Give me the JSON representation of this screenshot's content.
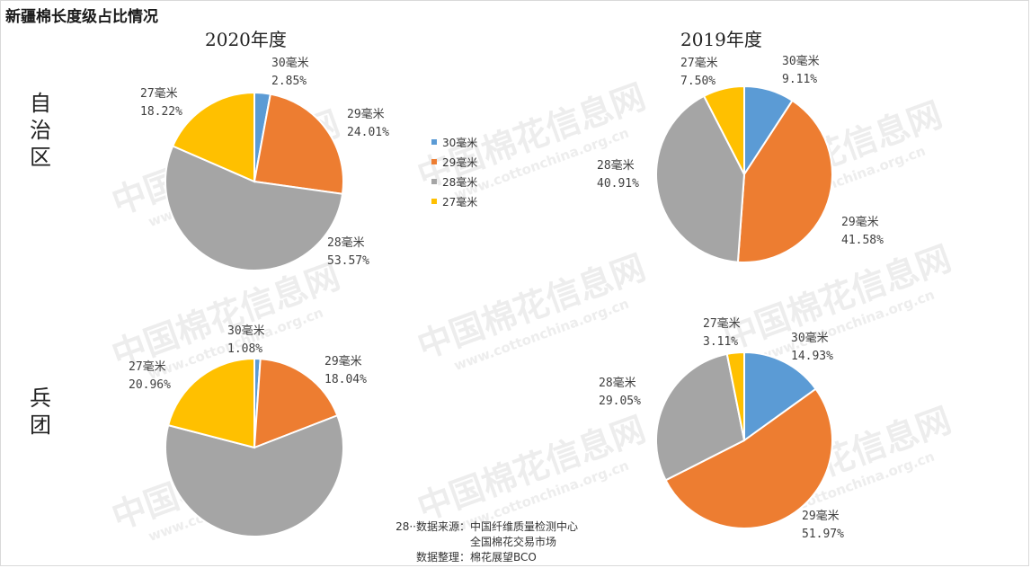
{
  "title": "新疆棉长度级占比情况",
  "year_titles": [
    "2020年度",
    "2019年度"
  ],
  "row_labels": [
    "自\n治\n区",
    "兵\n团"
  ],
  "legend": [
    "30毫米",
    "29毫米",
    "28毫米",
    "27毫米"
  ],
  "colors": {
    "30毫米": "#5b9bd5",
    "29毫米": "#ed7d31",
    "28毫米": "#a5a5a5",
    "27毫米": "#ffc000"
  },
  "watermark": {
    "cn": "中国棉花信息网",
    "en": "www.cottonchina.org.cn"
  },
  "source": {
    "label1": "数据来源：",
    "value1a": "中国纤维质量检测中心",
    "value1b": "全国棉花交易市场",
    "label2": "数据整理：",
    "value2": "棉花展望BCO",
    "prefix": "28"
  },
  "chart_data": [
    {
      "type": "pie",
      "title": "2020年度 自治区",
      "labels": [
        "30毫米",
        "29毫米",
        "28毫米",
        "27毫米"
      ],
      "values": [
        2.85,
        24.01,
        53.57,
        18.22
      ],
      "value_labels": [
        "2.85%",
        "24.01%",
        "53.57%",
        "18.22%"
      ]
    },
    {
      "type": "pie",
      "title": "2019年度 自治区",
      "labels": [
        "30毫米",
        "29毫米",
        "28毫米",
        "27毫米"
      ],
      "values": [
        9.11,
        41.58,
        40.91,
        7.5
      ],
      "value_labels": [
        "9.11%",
        "41.58%",
        "40.91%",
        "7.50%"
      ]
    },
    {
      "type": "pie",
      "title": "2020年度 兵团",
      "labels": [
        "30毫米",
        "29毫米",
        "28毫米",
        "27毫米"
      ],
      "values": [
        1.08,
        18.04,
        59.92,
        20.96
      ],
      "value_labels": [
        "1.08%",
        "18.04%",
        "",
        "20.96%"
      ]
    },
    {
      "type": "pie",
      "title": "2019年度 兵团",
      "labels": [
        "30毫米",
        "29毫米",
        "28毫米",
        "27毫米"
      ],
      "values": [
        14.93,
        51.97,
        29.05,
        3.11
      ],
      "value_labels": [
        "14.93%",
        "51.97%",
        "29.05%",
        "3.11%"
      ]
    }
  ]
}
